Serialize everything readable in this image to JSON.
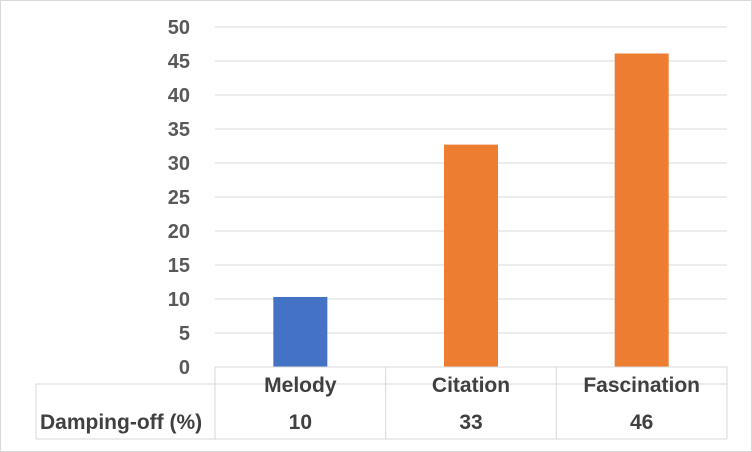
{
  "chart_data": {
    "type": "bar",
    "categories": [
      "Melody",
      "Citation",
      "Fascination"
    ],
    "values": [
      10.3,
      32.7,
      46.1
    ],
    "bar_colors": [
      "#4472c4",
      "#ed7d31",
      "#ed7d31"
    ],
    "ylim": [
      0,
      50
    ],
    "yticks": [
      0,
      5,
      10,
      15,
      20,
      25,
      30,
      35,
      40,
      45,
      50
    ],
    "grid": true,
    "data_table": {
      "row_label": "Damping-off (%)",
      "values": [
        "10",
        "33",
        "46"
      ]
    }
  }
}
